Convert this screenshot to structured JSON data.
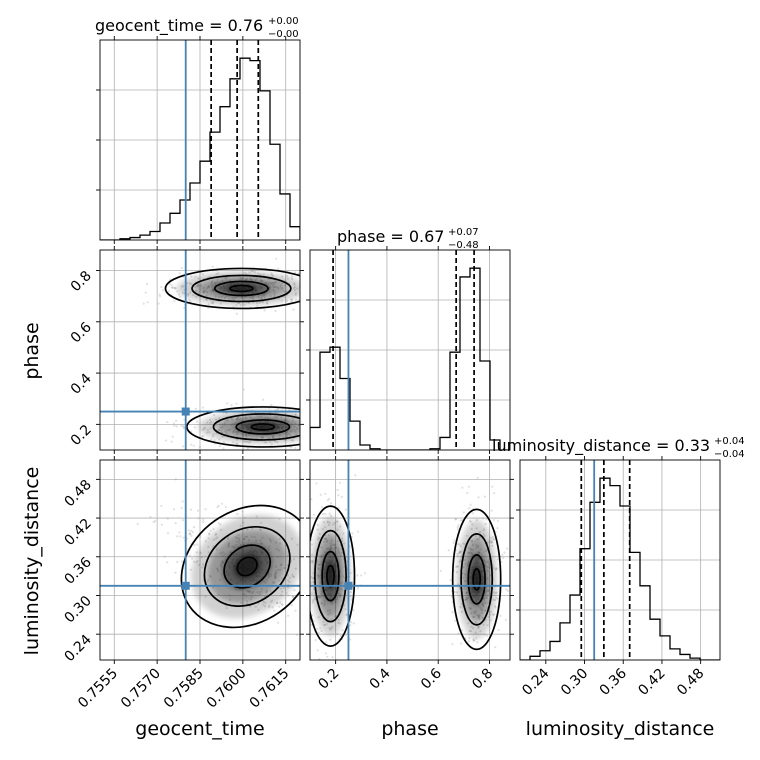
{
  "chart_data": {
    "type": "corner",
    "parameters": [
      "geocent_time",
      "phase",
      "luminosity_distance"
    ],
    "axis_labels": [
      "geocent_time",
      "phase",
      "luminosity_distance"
    ],
    "ranges": [
      [
        0.755,
        0.762
      ],
      [
        0.1,
        0.88
      ],
      [
        0.2,
        0.51
      ]
    ],
    "ticks": [
      [
        "0.7555",
        "0.7570",
        "0.7585",
        "0.7600",
        "0.7615"
      ],
      [
        "0.2",
        "0.4",
        "0.6",
        "0.8"
      ],
      [
        "0.24",
        "0.30",
        "0.36",
        "0.42",
        "0.48"
      ]
    ],
    "tick_values": [
      [
        0.7555,
        0.757,
        0.7585,
        0.76,
        0.7615
      ],
      [
        0.2,
        0.4,
        0.6,
        0.8
      ],
      [
        0.24,
        0.3,
        0.36,
        0.42,
        0.48
      ]
    ],
    "truths": [
      0.758,
      0.25,
      0.315
    ],
    "titles": [
      {
        "text": "geocent_time = 0.76",
        "sup": "+0.00",
        "sub": "−0.00"
      },
      {
        "text": "phase = 0.67",
        "sup": "+0.07",
        "sub": "−0.48"
      },
      {
        "text": "luminosity_distance = 0.33",
        "sup": "+0.04",
        "sub": "−0.04"
      }
    ],
    "quantiles": [
      [
        0.75889,
        0.7598,
        0.76054
      ],
      [
        0.19,
        0.67,
        0.74
      ],
      [
        0.295,
        0.33,
        0.37
      ]
    ],
    "histograms": [
      {
        "param": "geocent_time",
        "edges": [
          0.755,
          0.75535,
          0.7557,
          0.75605,
          0.7564,
          0.75675,
          0.7571,
          0.75745,
          0.7578,
          0.75815,
          0.7585,
          0.75885,
          0.7592,
          0.75955,
          0.7599,
          0.76025,
          0.7606,
          0.76095,
          0.7613,
          0.76165,
          0.762
        ],
        "counts": [
          0,
          0,
          1,
          2,
          4,
          7,
          14,
          22,
          33,
          47,
          65,
          89,
          110,
          133,
          150,
          148,
          123,
          79,
          38,
          11
        ]
      },
      {
        "param": "phase",
        "edges": [
          0.1,
          0.139,
          0.178,
          0.217,
          0.256,
          0.295,
          0.334,
          0.373,
          0.412,
          0.451,
          0.49,
          0.529,
          0.568,
          0.607,
          0.646,
          0.685,
          0.724,
          0.763,
          0.802,
          0.841,
          0.88
        ],
        "counts": [
          18,
          78,
          82,
          57,
          23,
          4,
          1,
          0,
          0,
          0,
          0,
          0,
          1,
          10,
          78,
          138,
          145,
          71,
          8,
          0
        ]
      },
      {
        "param": "luminosity_distance",
        "edges": [
          0.2,
          0.2155,
          0.231,
          0.2465,
          0.262,
          0.2775,
          0.293,
          0.3085,
          0.324,
          0.3395,
          0.355,
          0.3705,
          0.386,
          0.4015,
          0.417,
          0.4325,
          0.448,
          0.4635,
          0.479,
          0.4945,
          0.51
        ],
        "counts": [
          0,
          2,
          5,
          10,
          20,
          35,
          60,
          85,
          98,
          94,
          83,
          58,
          40,
          22,
          13,
          6,
          3,
          1,
          0,
          0
        ]
      }
    ],
    "density_2d": [
      {
        "x": "geocent_time",
        "y": "phase",
        "modes": [
          {
            "x": 0.75995,
            "y": 0.73
          },
          {
            "x": 0.7607,
            "y": 0.19
          }
        ]
      },
      {
        "x": "geocent_time",
        "y": "luminosity_distance",
        "modes": [
          {
            "x": 0.76015,
            "y": 0.345
          }
        ]
      },
      {
        "x": "phase",
        "y": "luminosity_distance",
        "modes": [
          {
            "x": 0.18,
            "y": 0.33
          },
          {
            "x": 0.75,
            "y": 0.325
          }
        ]
      }
    ],
    "grid": true
  }
}
